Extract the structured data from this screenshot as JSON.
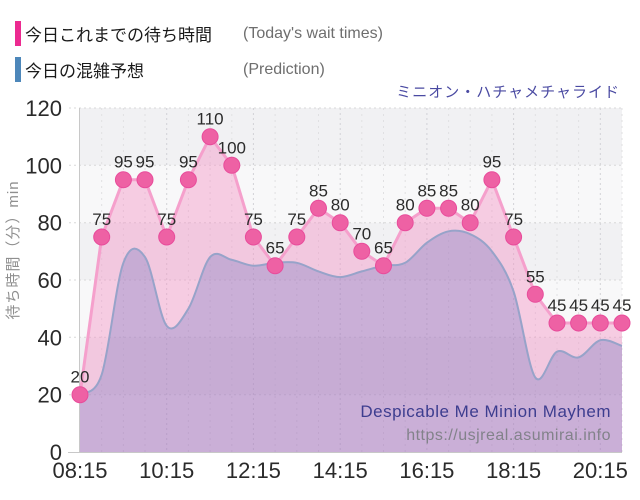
{
  "title": "ミニオン・ハチャメチャライド",
  "legend": {
    "items": [
      {
        "label_jp": "今日これまでの待ち時間",
        "label_en": "(Today's wait times)",
        "color": "#ec2a90"
      },
      {
        "label_jp": "今日の混雑予想",
        "label_en": "(Prediction)",
        "color": "#4d87ba"
      }
    ]
  },
  "watermark": {
    "line1": "Despicable Me Minion Mayhem",
    "line2": "https://usjreal.asumirai.info"
  },
  "chart_data": {
    "type": "line",
    "title": "ミニオン・ハチャメチャライド",
    "xlabel": "",
    "ylabel": "待ち時間（分）min",
    "ylim": [
      0,
      120
    ],
    "yticks": [
      0,
      20,
      40,
      60,
      80,
      100,
      120
    ],
    "x": [
      "08:15",
      "08:45",
      "09:15",
      "09:45",
      "10:15",
      "10:45",
      "11:15",
      "11:45",
      "12:15",
      "12:45",
      "13:15",
      "13:45",
      "14:15",
      "14:45",
      "15:15",
      "15:45",
      "16:15",
      "16:45",
      "17:15",
      "17:45",
      "18:15",
      "18:45",
      "19:15",
      "19:45",
      "20:15",
      "20:45"
    ],
    "x_tick_labels": [
      "08:15",
      "10:15",
      "12:15",
      "14:15",
      "16:15",
      "18:15",
      "20:15"
    ],
    "grid": true,
    "legend_position": "top-left",
    "series": [
      {
        "name": "今日これまでの待ち時間 (Today's wait times)",
        "style": "linear",
        "show_markers": true,
        "show_value_labels": true,
        "marker_color": "#ee61a4",
        "marker_stroke": "#e84c9b",
        "line_color": "#f5a0cc",
        "fill_color": "rgba(244,143,195,0.42)",
        "values": [
          20,
          75,
          95,
          95,
          75,
          95,
          110,
          100,
          75,
          65,
          75,
          85,
          80,
          70,
          65,
          80,
          85,
          85,
          80,
          95,
          75,
          55,
          45,
          45,
          45,
          45
        ]
      },
      {
        "name": "今日の混雑予想 (Prediction)",
        "style": "smooth",
        "show_markers": false,
        "show_value_labels": false,
        "line_color": "#97a3c9",
        "fill_color": "rgba(100,110,190,0.30)",
        "values_are_estimates": true,
        "values": [
          20,
          27,
          66,
          68,
          44,
          50,
          68,
          67,
          65,
          66,
          66,
          63,
          61,
          63,
          65,
          66,
          73,
          77,
          76,
          70,
          56,
          26,
          35,
          33,
          39,
          37
        ]
      }
    ]
  },
  "style_colors": {
    "band_dark": "#f1f1f3",
    "band_light": "#f8f8f9",
    "grid_h": "#d8d8d8",
    "grid_v_minor": "#e0e0e2",
    "grid_v_major": "#d2d2d6",
    "axis": "#c8c8c8",
    "tick_text": "#2a2a2a",
    "point_label_text": "#2b2b2b",
    "ylabel_text": "#8f8f8f",
    "watermark1": "#3d3d8f",
    "watermark2": "#82828a"
  }
}
